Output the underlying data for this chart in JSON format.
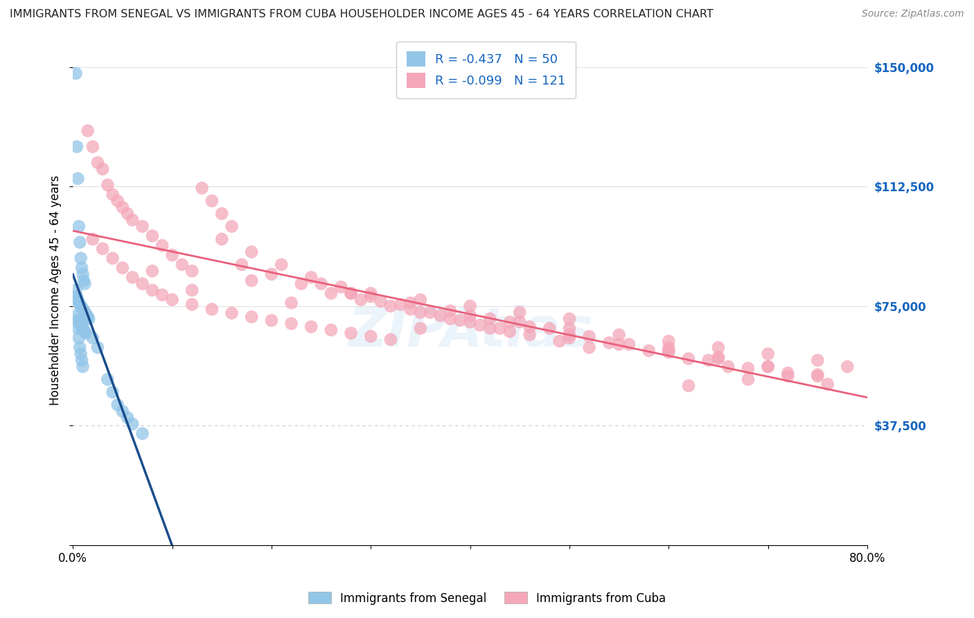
{
  "title": "IMMIGRANTS FROM SENEGAL VS IMMIGRANTS FROM CUBA HOUSEHOLDER INCOME AGES 45 - 64 YEARS CORRELATION CHART",
  "source": "Source: ZipAtlas.com",
  "ylabel": "Householder Income Ages 45 - 64 years",
  "xlim": [
    0.0,
    0.8
  ],
  "ylim": [
    0,
    160000
  ],
  "yticks": [
    0,
    37500,
    75000,
    112500,
    150000
  ],
  "ytick_labels": [
    "",
    "$37,500",
    "$75,000",
    "$112,500",
    "$150,000"
  ],
  "senegal_R": -0.437,
  "senegal_N": 50,
  "cuba_R": -0.099,
  "cuba_N": 121,
  "senegal_color": "#92C5E8",
  "cuba_color": "#F4A7B9",
  "senegal_line_color": "#1A4E8C",
  "cuba_line_color": "#E8607A",
  "legend_label_senegal": "Immigrants from Senegal",
  "legend_label_cuba": "Immigrants from Cuba",
  "watermark": "ZIPAtlas",
  "background_color": "#FFFFFF",
  "grid_color_solid": "#E0E0E0",
  "grid_color_dashed": "#CCCCCC",
  "senegal_x": [
    0.003,
    0.004,
    0.005,
    0.006,
    0.007,
    0.008,
    0.009,
    0.01,
    0.011,
    0.012,
    0.003,
    0.004,
    0.005,
    0.006,
    0.007,
    0.008,
    0.009,
    0.01,
    0.011,
    0.012,
    0.013,
    0.014,
    0.015,
    0.016,
    0.005,
    0.006,
    0.007,
    0.008,
    0.009,
    0.01,
    0.011,
    0.012,
    0.013,
    0.02,
    0.025,
    0.003,
    0.004,
    0.005,
    0.006,
    0.007,
    0.008,
    0.009,
    0.01,
    0.035,
    0.04,
    0.045,
    0.05,
    0.055,
    0.06,
    0.07
  ],
  "senegal_y": [
    148000,
    125000,
    115000,
    100000,
    95000,
    90000,
    87000,
    85000,
    83000,
    82000,
    80000,
    78000,
    77000,
    76000,
    75500,
    75000,
    74500,
    74000,
    73500,
    73000,
    72500,
    72000,
    71500,
    71000,
    70500,
    70000,
    69500,
    69000,
    68500,
    68000,
    67500,
    67000,
    66500,
    65000,
    62000,
    78000,
    72000,
    68000,
    65000,
    62000,
    60000,
    58000,
    56000,
    52000,
    48000,
    44000,
    42000,
    40000,
    38000,
    35000
  ],
  "cuba_x": [
    0.015,
    0.02,
    0.025,
    0.03,
    0.035,
    0.04,
    0.045,
    0.05,
    0.055,
    0.06,
    0.07,
    0.08,
    0.09,
    0.1,
    0.11,
    0.12,
    0.13,
    0.14,
    0.15,
    0.16,
    0.02,
    0.03,
    0.04,
    0.05,
    0.06,
    0.07,
    0.08,
    0.09,
    0.1,
    0.12,
    0.14,
    0.16,
    0.18,
    0.2,
    0.22,
    0.24,
    0.26,
    0.28,
    0.3,
    0.32,
    0.15,
    0.18,
    0.21,
    0.24,
    0.27,
    0.3,
    0.33,
    0.36,
    0.39,
    0.42,
    0.17,
    0.2,
    0.23,
    0.26,
    0.29,
    0.32,
    0.35,
    0.38,
    0.41,
    0.44,
    0.25,
    0.28,
    0.31,
    0.34,
    0.37,
    0.4,
    0.43,
    0.46,
    0.49,
    0.52,
    0.3,
    0.34,
    0.38,
    0.42,
    0.46,
    0.5,
    0.54,
    0.58,
    0.62,
    0.66,
    0.4,
    0.44,
    0.48,
    0.52,
    0.56,
    0.6,
    0.64,
    0.68,
    0.72,
    0.76,
    0.5,
    0.55,
    0.6,
    0.65,
    0.7,
    0.75,
    0.6,
    0.65,
    0.7,
    0.75,
    0.35,
    0.4,
    0.45,
    0.5,
    0.35,
    0.28,
    0.22,
    0.18,
    0.12,
    0.08,
    0.45,
    0.5,
    0.55,
    0.6,
    0.65,
    0.7,
    0.75,
    0.78,
    0.72,
    0.68,
    0.62
  ],
  "cuba_y": [
    130000,
    125000,
    120000,
    118000,
    113000,
    110000,
    108000,
    106000,
    104000,
    102000,
    100000,
    97000,
    94000,
    91000,
    88000,
    86000,
    112000,
    108000,
    104000,
    100000,
    96000,
    93000,
    90000,
    87000,
    84000,
    82000,
    80000,
    78500,
    77000,
    75500,
    74000,
    72800,
    71600,
    70500,
    69500,
    68500,
    67500,
    66500,
    65500,
    64500,
    96000,
    92000,
    88000,
    84000,
    81000,
    78000,
    75500,
    73000,
    70500,
    68000,
    88000,
    85000,
    82000,
    79000,
    77000,
    75000,
    73000,
    71000,
    69000,
    67000,
    82000,
    79000,
    76500,
    74000,
    72000,
    70000,
    68000,
    66000,
    64000,
    62000,
    79000,
    76000,
    73500,
    71000,
    68500,
    66000,
    63500,
    61000,
    58500,
    56000,
    72000,
    70000,
    68000,
    65500,
    63000,
    60500,
    58000,
    55500,
    53000,
    50500,
    65000,
    63000,
    61000,
    58500,
    56000,
    53500,
    62000,
    59000,
    56000,
    53000,
    77000,
    75000,
    73000,
    71000,
    68000,
    79000,
    76000,
    83000,
    80000,
    86000,
    70000,
    68000,
    66000,
    64000,
    62000,
    60000,
    58000,
    56000,
    54000,
    52000,
    50000
  ]
}
